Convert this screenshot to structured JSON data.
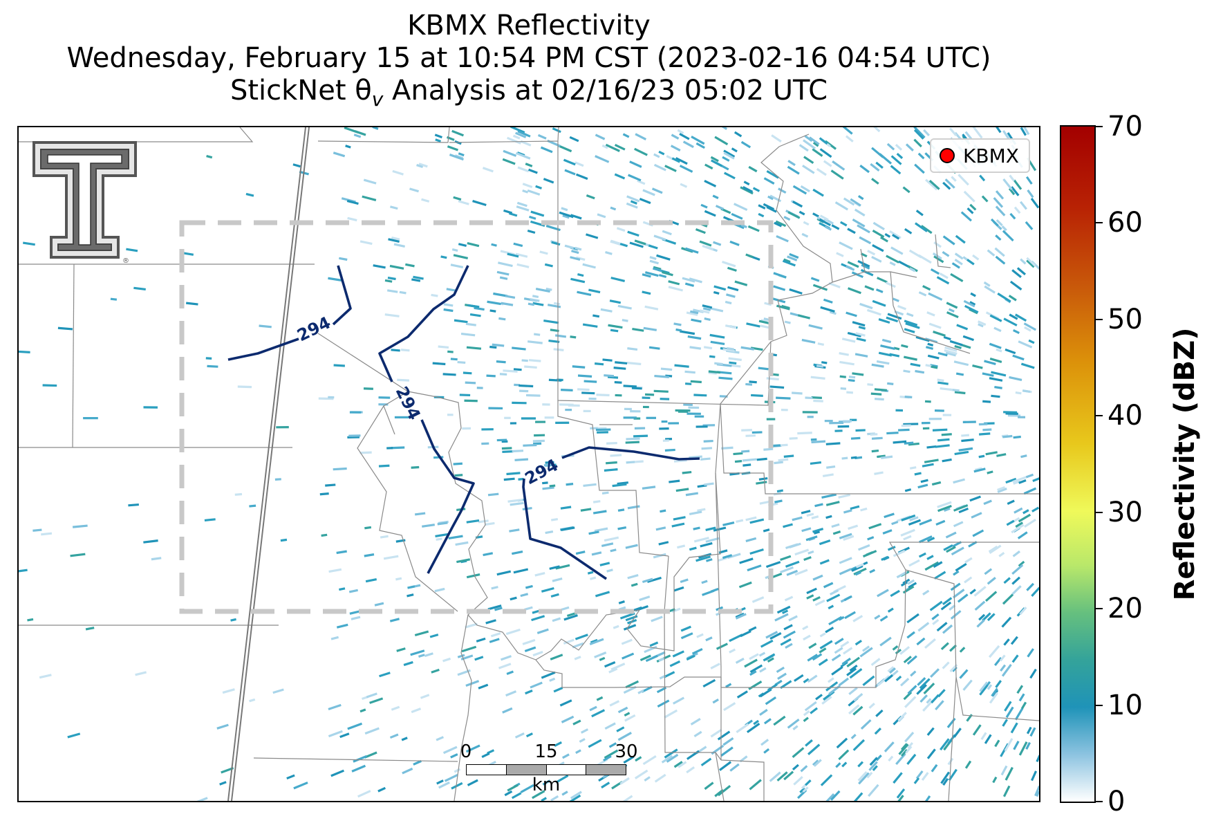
{
  "title": {
    "line1": "KBMX Reflectivity",
    "line2": "Wednesday, February 15 at 10:54 PM CST (2023-02-16 04:54 UTC)",
    "line3_prefix": "StickNet θ",
    "line3_sub": "v",
    "line3_suffix": " Analysis at 02/16/23 05:02 UTC"
  },
  "legend": {
    "label": "KBMX",
    "marker_color": "#ff0000"
  },
  "contours": {
    "value_label": "294",
    "color": "#0c2a6e"
  },
  "domain_box_color": "#c8c8c8",
  "scalebar": {
    "ticks": [
      "0",
      "15",
      "30"
    ],
    "unit": "km"
  },
  "colorbar": {
    "label": "Reflectivity (dBZ)",
    "min": 0,
    "max": 70,
    "ticks": [
      "0",
      "10",
      "20",
      "30",
      "40",
      "50",
      "60",
      "70"
    ]
  },
  "logo": {
    "icon": "texas-tech-double-t-logo",
    "color": "#555555"
  }
}
